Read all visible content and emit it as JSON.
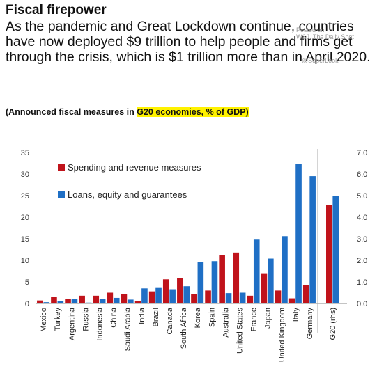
{
  "header": {
    "title": "Fiscal firepower",
    "subtitle": "As the pandemic and Great Lockdown continue, countries have now deployed $9 trillion to help people and firms get through the crisis, which is $1 trillion more than in April 2020.",
    "note_prefix": "(Announced fiscal measures in ",
    "note_highlight": "G20 economies, % of GDP)",
    "watermark_line1": "Posted on",
    "watermark_line2": "WSJ, The Daily Shot",
    "watermark_line3": "@SoberLook"
  },
  "chart_data": {
    "type": "bar",
    "categories": [
      "Mexico",
      "Turkey",
      "Argentina",
      "Russia",
      "Indonesia",
      "China",
      "Saudi Arabia",
      "India",
      "Brazil",
      "Canada",
      "South Africa",
      "Korea",
      "Spain",
      "Australia",
      "United States",
      "France",
      "Japan",
      "United Kingdom",
      "Italy",
      "Germany"
    ],
    "series": [
      {
        "name": "Spending and revenue measures",
        "color": "#c0131b",
        "values": [
          0.7,
          1.6,
          1.1,
          1.8,
          1.8,
          2.5,
          2.2,
          0.6,
          2.8,
          5.6,
          5.9,
          2.2,
          3.0,
          11.2,
          11.8,
          1.8,
          7.0,
          3.0,
          1.2,
          4.2
        ]
      },
      {
        "name": "Loans, equity and guarantees",
        "color": "#1f6fc5",
        "values": [
          0.3,
          0.5,
          1.1,
          0.2,
          1.0,
          1.3,
          0.9,
          3.5,
          3.6,
          3.3,
          4.0,
          9.6,
          9.8,
          2.4,
          2.5,
          14.8,
          10.4,
          15.6,
          32.3,
          29.5
        ]
      }
    ],
    "left_axis": {
      "ylim": [
        0,
        35
      ],
      "ticks": [
        "0",
        "5",
        "10",
        "15",
        "20",
        "25",
        "30",
        "35"
      ]
    },
    "right_axis": {
      "ylim": [
        0.0,
        7.0
      ],
      "ticks": [
        "0.0",
        "1.0",
        "2.0",
        "3.0",
        "4.0",
        "5.0",
        "6.0",
        "7.0"
      ]
    },
    "secondary": {
      "category": "G20 (rhs)",
      "values": [
        4.55,
        5.0
      ]
    },
    "legend_position": "top-left",
    "grid": false
  }
}
